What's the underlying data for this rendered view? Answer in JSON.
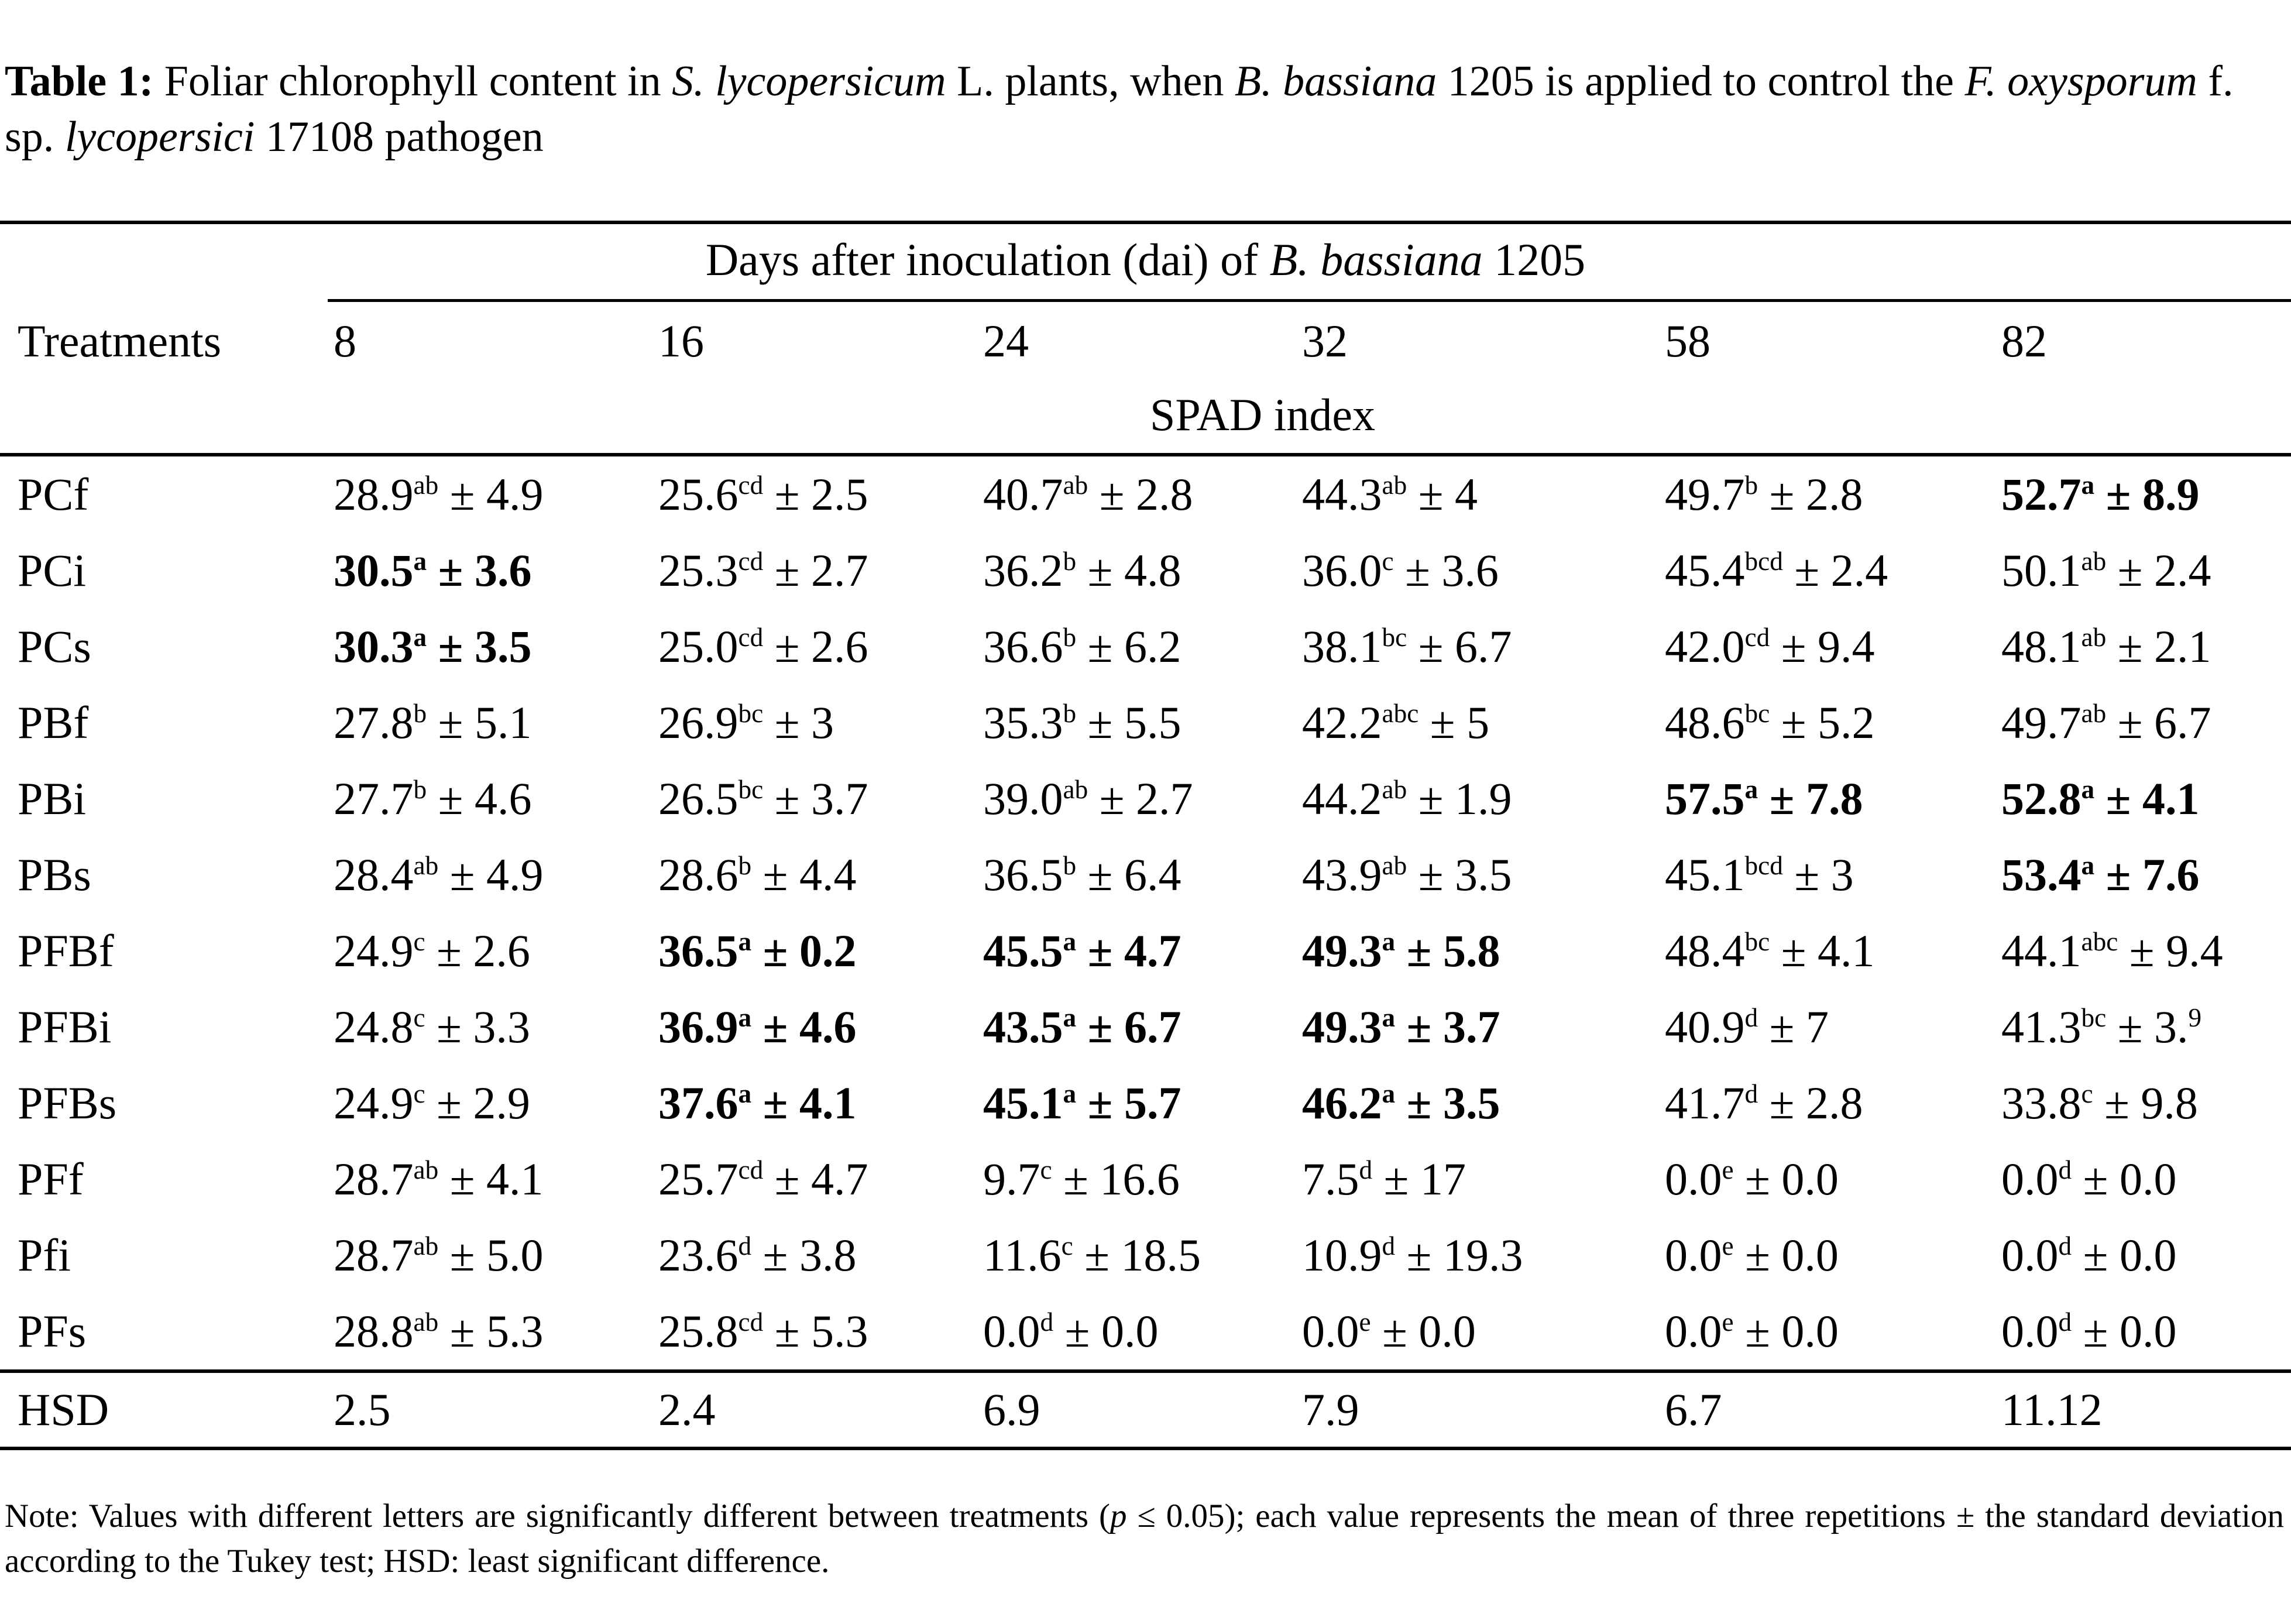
{
  "pm": "±",
  "title": {
    "bold_label": "Table 1:",
    "segments": [
      {
        "text": " Foliar chlorophyll content in ",
        "italic": false
      },
      {
        "text": "S. lycopersicum",
        "italic": true
      },
      {
        "text": " L. plants, when ",
        "italic": false
      },
      {
        "text": "B. bassiana",
        "italic": true
      },
      {
        "text": " 1205 is applied to control the ",
        "italic": false
      },
      {
        "text": "F. oxysporum",
        "italic": true
      },
      {
        "text": " f. sp. ",
        "italic": false
      },
      {
        "text": "lycopersici",
        "italic": true
      },
      {
        "text": " 17108 pathogen",
        "italic": false
      }
    ]
  },
  "table": {
    "span_header": {
      "segments": [
        {
          "text": "Days after inoculation (dai) of ",
          "italic": false
        },
        {
          "text": "B. bassiana",
          "italic": true
        },
        {
          "text": " 1205",
          "italic": false
        }
      ]
    },
    "columns": {
      "treatments_label": "Treatments",
      "days": [
        "8",
        "16",
        "24",
        "32",
        "58",
        "82"
      ]
    },
    "subheader": "SPAD index",
    "rows": [
      {
        "treatment": "PCf",
        "cells": [
          {
            "mean": "28.9",
            "sup": "ab",
            "sd": "4.9",
            "bold": false
          },
          {
            "mean": "25.6",
            "sup": "cd",
            "sd": "2.5",
            "bold": false
          },
          {
            "mean": "40.7",
            "sup": "ab",
            "sd": "2.8",
            "bold": false
          },
          {
            "mean": "44.3",
            "sup": "ab",
            "sd": "4",
            "bold": false
          },
          {
            "mean": "49.7",
            "sup": "b",
            "sd": "2.8",
            "bold": false
          },
          {
            "mean": "52.7",
            "sup": "a",
            "sd": "8.9",
            "bold": true
          }
        ]
      },
      {
        "treatment": "PCi",
        "cells": [
          {
            "mean": "30.5",
            "sup": "a",
            "sd": "3.6",
            "bold": true
          },
          {
            "mean": "25.3",
            "sup": "cd",
            "sd": "2.7",
            "bold": false
          },
          {
            "mean": "36.2",
            "sup": "b",
            "sd": "4.8",
            "bold": false
          },
          {
            "mean": "36.0",
            "sup": "c",
            "sd": "3.6",
            "bold": false
          },
          {
            "mean": "45.4",
            "sup": "bcd",
            "sd": "2.4",
            "bold": false
          },
          {
            "mean": "50.1",
            "sup": "ab",
            "sd": "2.4",
            "bold": false
          }
        ]
      },
      {
        "treatment": "PCs",
        "cells": [
          {
            "mean": "30.3",
            "sup": "a",
            "sd": "3.5",
            "bold": true
          },
          {
            "mean": "25.0",
            "sup": "cd",
            "sd": "2.6",
            "bold": false
          },
          {
            "mean": "36.6",
            "sup": "b",
            "sd": "6.2",
            "bold": false
          },
          {
            "mean": "38.1",
            "sup": "bc",
            "sd": "6.7",
            "bold": false
          },
          {
            "mean": "42.0",
            "sup": "cd",
            "sd": "9.4",
            "bold": false
          },
          {
            "mean": "48.1",
            "sup": "ab",
            "sd": "2.1",
            "bold": false
          }
        ]
      },
      {
        "treatment": "PBf",
        "cells": [
          {
            "mean": "27.8",
            "sup": "b",
            "sd": "5.1",
            "bold": false
          },
          {
            "mean": "26.9",
            "sup": "bc",
            "sd": "3",
            "bold": false
          },
          {
            "mean": "35.3",
            "sup": "b",
            "sd": "5.5",
            "bold": false
          },
          {
            "mean": "42.2",
            "sup": "abc",
            "sd": "5",
            "bold": false
          },
          {
            "mean": "48.6",
            "sup": "bc",
            "sd": "5.2",
            "bold": false
          },
          {
            "mean": "49.7",
            "sup": "ab",
            "sd": "6.7",
            "bold": false
          }
        ]
      },
      {
        "treatment": "PBi",
        "cells": [
          {
            "mean": "27.7",
            "sup": "b",
            "sd": "4.6",
            "bold": false
          },
          {
            "mean": "26.5",
            "sup": "bc",
            "sd": "3.7",
            "bold": false
          },
          {
            "mean": "39.0",
            "sup": "ab",
            "sd": "2.7",
            "bold": false
          },
          {
            "mean": "44.2",
            "sup": "ab",
            "sd": "1.9",
            "bold": false
          },
          {
            "mean": "57.5",
            "sup": "a",
            "sd": "7.8",
            "bold": true
          },
          {
            "mean": "52.8",
            "sup": "a",
            "sd": "4.1",
            "bold": true
          }
        ]
      },
      {
        "treatment": "PBs",
        "cells": [
          {
            "mean": "28.4",
            "sup": "ab",
            "sd": "4.9",
            "bold": false
          },
          {
            "mean": "28.6",
            "sup": "b",
            "sd": "4.4",
            "bold": false
          },
          {
            "mean": "36.5",
            "sup": "b",
            "sd": "6.4",
            "bold": false
          },
          {
            "mean": "43.9",
            "sup": "ab",
            "sd": "3.5",
            "bold": false
          },
          {
            "mean": "45.1",
            "sup": "bcd",
            "sd": "3",
            "bold": false
          },
          {
            "mean": "53.4",
            "sup": "a",
            "sd": "7.6",
            "bold": true
          }
        ]
      },
      {
        "treatment": "PFBf",
        "cells": [
          {
            "mean": "24.9",
            "sup": "c",
            "sd": "2.6",
            "bold": false
          },
          {
            "mean": "36.5",
            "sup": "a",
            "sd": "0.2",
            "bold": true
          },
          {
            "mean": "45.5",
            "sup": "a",
            "sd": "4.7",
            "bold": true
          },
          {
            "mean": "49.3",
            "sup": "a",
            "sd": "5.8",
            "bold": true
          },
          {
            "mean": "48.4",
            "sup": "bc",
            "sd": "4.1",
            "bold": false
          },
          {
            "mean": "44.1",
            "sup": "abc",
            "sd": "9.4",
            "bold": false
          }
        ]
      },
      {
        "treatment": "PFBi",
        "cells": [
          {
            "mean": "24.8",
            "sup": "c",
            "sd": "3.3",
            "bold": false
          },
          {
            "mean": "36.9",
            "sup": "a",
            "sd": "4.6",
            "bold": true
          },
          {
            "mean": "43.5",
            "sup": "a",
            "sd": "6.7",
            "bold": true
          },
          {
            "mean": "49.3",
            "sup": "a",
            "sd": "3.7",
            "bold": true
          },
          {
            "mean": "40.9",
            "sup": "d",
            "sd": "7",
            "bold": false
          },
          {
            "mean": "41.3",
            "sup": "bc",
            "sd": "3.",
            "sd_sup": "9",
            "bold": false
          }
        ]
      },
      {
        "treatment": "PFBs",
        "cells": [
          {
            "mean": "24.9",
            "sup": "c",
            "sd": "2.9",
            "bold": false
          },
          {
            "mean": "37.6",
            "sup": "a",
            "sd": "4.1",
            "bold": true
          },
          {
            "mean": "45.1",
            "sup": "a",
            "sd": "5.7",
            "bold": true
          },
          {
            "mean": "46.2",
            "sup": "a",
            "sd": "3.5",
            "bold": true
          },
          {
            "mean": "41.7",
            "sup": "d",
            "sd": "2.8",
            "bold": false
          },
          {
            "mean": "33.8",
            "sup": "c",
            "sd": "9.8",
            "bold": false
          }
        ]
      },
      {
        "treatment": "PFf",
        "cells": [
          {
            "mean": "28.7",
            "sup": "ab",
            "sd": "4.1",
            "bold": false
          },
          {
            "mean": "25.7",
            "sup": "cd",
            "sd": "4.7",
            "bold": false
          },
          {
            "mean": "9.7",
            "sup": "c",
            "sd": "16.6",
            "bold": false
          },
          {
            "mean": "7.5",
            "sup": "d",
            "sd": "17",
            "bold": false
          },
          {
            "mean": "0.0",
            "sup": "e",
            "sd": "0.0",
            "bold": false
          },
          {
            "mean": "0.0",
            "sup": "d",
            "sd": "0.0",
            "bold": false
          }
        ]
      },
      {
        "treatment": "Pfi",
        "cells": [
          {
            "mean": "28.7",
            "sup": "ab",
            "sd": "5.0",
            "bold": false
          },
          {
            "mean": "23.6",
            "sup": "d",
            "sd": "3.8",
            "bold": false
          },
          {
            "mean": "11.6",
            "sup": "c",
            "sd": "18.5",
            "bold": false
          },
          {
            "mean": "10.9",
            "sup": "d",
            "sd": "19.3",
            "bold": false
          },
          {
            "mean": "0.0",
            "sup": "e",
            "sd": "0.0",
            "bold": false
          },
          {
            "mean": "0.0",
            "sup": "d",
            "sd": "0.0",
            "bold": false
          }
        ]
      },
      {
        "treatment": "PFs",
        "cells": [
          {
            "mean": "28.8",
            "sup": "ab",
            "sd": "5.3",
            "bold": false
          },
          {
            "mean": "25.8",
            "sup": "cd",
            "sd": "5.3",
            "bold": false
          },
          {
            "mean": "0.0",
            "sup": "d",
            "sd": "0.0",
            "bold": false
          },
          {
            "mean": "0.0",
            "sup": "e",
            "sd": "0.0",
            "bold": false
          },
          {
            "mean": "0.0",
            "sup": "e",
            "sd": "0.0",
            "bold": false
          },
          {
            "mean": "0.0",
            "sup": "d",
            "sd": "0.0",
            "bold": false
          }
        ]
      }
    ],
    "hsd": {
      "label": "HSD",
      "values": [
        "2.5",
        "2.4",
        "6.9",
        "7.9",
        "6.7",
        "11.12"
      ]
    }
  },
  "note": {
    "segments": [
      {
        "text": "Note: Values with different letters are significantly different between treatments (",
        "italic": false
      },
      {
        "text": "p",
        "italic": true
      },
      {
        "text": " ≤ 0.05); each value represents the mean of three repetitions ± the standard deviation according to the Tukey test; HSD: least significant difference.",
        "italic": false
      }
    ]
  }
}
